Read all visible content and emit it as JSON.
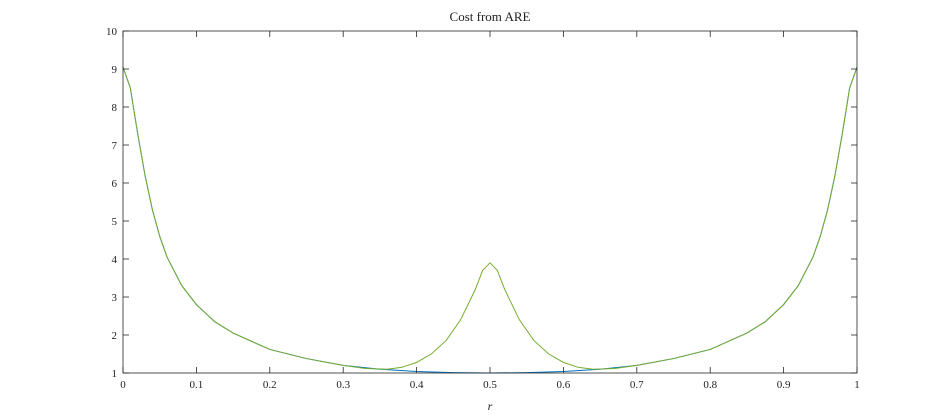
{
  "chart_data": {
    "type": "line",
    "title": "Cost from ARE",
    "xlabel": "r",
    "ylabel": "",
    "xlim": [
      0,
      1
    ],
    "ylim": [
      1,
      10
    ],
    "xticks": [
      "0",
      "0.1",
      "0.2",
      "0.3",
      "0.4",
      "0.5",
      "0.6",
      "0.7",
      "0.8",
      "0.9",
      "1"
    ],
    "yticks": [
      "1",
      "2",
      "3",
      "4",
      "5",
      "6",
      "7",
      "8",
      "9",
      "10"
    ],
    "grid": false,
    "series": [
      {
        "color": "#0072bd",
        "x": [
          0,
          0.01,
          0.02,
          0.03,
          0.04,
          0.05,
          0.06,
          0.08,
          0.1,
          0.125,
          0.15,
          0.2,
          0.25,
          0.3,
          0.35,
          0.4,
          0.45,
          0.5,
          0.55,
          0.6,
          0.65,
          0.7,
          0.75,
          0.8,
          0.85,
          0.875,
          0.9,
          0.92,
          0.94,
          0.95,
          0.96,
          0.97,
          0.98,
          0.99,
          1
        ],
        "y": [
          9.05,
          8.5,
          7.3,
          6.2,
          5.3,
          4.6,
          4.05,
          3.3,
          2.8,
          2.35,
          2.05,
          1.62,
          1.38,
          1.2,
          1.1,
          1.04,
          1.01,
          1.0,
          1.01,
          1.04,
          1.1,
          1.2,
          1.38,
          1.62,
          2.05,
          2.35,
          2.8,
          3.3,
          4.05,
          4.6,
          5.3,
          6.2,
          7.3,
          8.5,
          9.05
        ]
      },
      {
        "color": "#77ac30",
        "x": [
          0,
          0.01,
          0.02,
          0.03,
          0.04,
          0.05,
          0.06,
          0.08,
          0.1,
          0.125,
          0.15,
          0.2,
          0.25,
          0.3,
          0.33,
          0.36,
          0.38,
          0.4,
          0.42,
          0.44,
          0.46,
          0.48,
          0.49,
          0.5,
          0.51,
          0.52,
          0.54,
          0.56,
          0.58,
          0.6,
          0.62,
          0.64,
          0.67,
          0.7,
          0.75,
          0.8,
          0.85,
          0.875,
          0.9,
          0.92,
          0.94,
          0.95,
          0.96,
          0.97,
          0.98,
          0.99,
          1
        ],
        "y": [
          9.05,
          8.5,
          7.3,
          6.2,
          5.3,
          4.6,
          4.05,
          3.3,
          2.8,
          2.35,
          2.05,
          1.62,
          1.38,
          1.2,
          1.12,
          1.1,
          1.15,
          1.28,
          1.5,
          1.85,
          2.4,
          3.2,
          3.7,
          3.9,
          3.7,
          3.2,
          2.4,
          1.85,
          1.5,
          1.28,
          1.15,
          1.1,
          1.12,
          1.2,
          1.38,
          1.62,
          2.05,
          2.35,
          2.8,
          3.3,
          4.05,
          4.6,
          5.3,
          6.2,
          7.3,
          8.5,
          9.05
        ]
      }
    ]
  }
}
